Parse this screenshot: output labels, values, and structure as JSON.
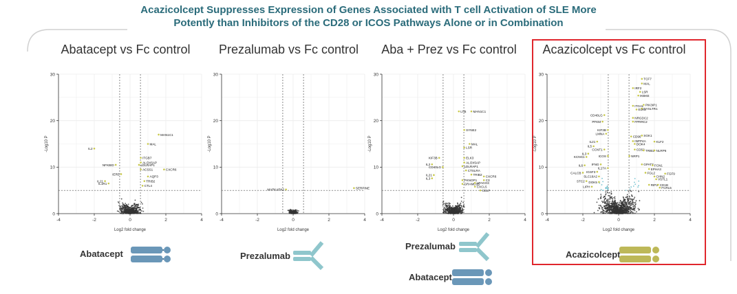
{
  "slide": {
    "title_line1": "Acazicolcept Suppresses Expression of Genes Associated with T cell Activation of SLE More",
    "title_line2": "Potently than Inhibitors of the CD28 or ICOS Pathways Alone or in Combination",
    "colors": {
      "title": "#2a6b7a",
      "highlight": "#e0262c",
      "sig_point": "#5bb7c8",
      "hl_point": "#c8c84a",
      "ns_point": "#333333",
      "abatacept_icon": "#6a97b8",
      "prezalumab_icon": "#8fc6cc",
      "acazicolcept_icon": "#bdb858"
    }
  },
  "drugs": {
    "abatacept": "Abatacept",
    "prezalumab": "Prezalumab",
    "acazicolcept": "Acazicolcept"
  },
  "chart_data": [
    {
      "type": "scatter",
      "title": "Abatacept vs Fc control",
      "xlabel": "Log2 fold change",
      "ylabel": "-Log10 P",
      "xlim": [
        -4,
        4
      ],
      "ylim": [
        0,
        30
      ],
      "xticks": [
        "-4",
        "-2",
        "0",
        "2",
        "4"
      ],
      "yticks": [
        "0",
        "10",
        "20",
        "30"
      ],
      "fc_threshold": [
        -0.58,
        0.58
      ],
      "p_threshold": 5,
      "points": [
        {
          "x": 1.6,
          "y": 17,
          "label": "MAN1C1"
        },
        {
          "x": 1.0,
          "y": 15,
          "label": "MAL"
        },
        {
          "x": -2.0,
          "y": 14,
          "label": "IL2"
        },
        {
          "x": 0.6,
          "y": 12,
          "label": "ITGB7"
        },
        {
          "x": 0.6,
          "y": 11,
          "label": "ALOX5AP"
        },
        {
          "x": -0.8,
          "y": 10.5,
          "label": "NFKBID"
        },
        {
          "x": 0.5,
          "y": 10.5,
          "label": "LDLRAP1"
        },
        {
          "x": 0.6,
          "y": 9.5,
          "label": "ACSS1"
        },
        {
          "x": 1.9,
          "y": 9.5,
          "label": "CXCR6"
        },
        {
          "x": -0.5,
          "y": 8.5,
          "label": "IER5"
        },
        {
          "x": 1.0,
          "y": 8,
          "label": "AQP3"
        },
        {
          "x": 0.8,
          "y": 7,
          "label": "TRIB2"
        },
        {
          "x": -1.4,
          "y": 7,
          "label": "IL21"
        },
        {
          "x": -1.2,
          "y": 6.5,
          "label": "IL1R1"
        },
        {
          "x": 0.7,
          "y": 6,
          "label": "CTL4"
        }
      ]
    },
    {
      "type": "scatter",
      "title": "Prezalumab vs Fc control",
      "xlabel": "Log2 fold change",
      "ylabel": "-Log10 P",
      "xlim": [
        -4,
        4
      ],
      "ylim": [
        0,
        30
      ],
      "xticks": [
        "-4",
        "-2",
        "0",
        "2",
        "4"
      ],
      "yticks": [
        "0",
        "10",
        "20",
        "30"
      ],
      "fc_threshold": [
        -0.58,
        0.58
      ],
      "p_threshold": 5,
      "points": [
        {
          "x": -0.4,
          "y": 5.2,
          "label": "MAPKAPK2"
        },
        {
          "x": 3.4,
          "y": 5.5,
          "label": "SERPINE"
        }
      ]
    },
    {
      "type": "scatter",
      "title": "Aba + Prez vs Fc control",
      "xlabel": "Log2 fold change",
      "ylabel": "-Log10 P",
      "xlim": [
        -4,
        4
      ],
      "ylim": [
        0,
        30
      ],
      "xticks": [
        "-4",
        "-2",
        "0",
        "2",
        "4"
      ],
      "yticks": [
        "0",
        "10",
        "20",
        "30"
      ],
      "fc_threshold": [
        -0.58,
        0.58
      ],
      "p_threshold": 5,
      "points": [
        {
          "x": 0.3,
          "y": 22,
          "label": "LTB"
        },
        {
          "x": 1.0,
          "y": 22,
          "label": "MAN1C1"
        },
        {
          "x": 0.6,
          "y": 18,
          "label": "SYNE2"
        },
        {
          "x": 0.9,
          "y": 15,
          "label": "MAL"
        },
        {
          "x": 0.6,
          "y": 14.2,
          "label": "LSR"
        },
        {
          "x": -0.8,
          "y": 12,
          "label": "KIF3B"
        },
        {
          "x": 0.6,
          "y": 12,
          "label": "ELK3"
        },
        {
          "x": 0.6,
          "y": 11,
          "label": "ALOX5AP"
        },
        {
          "x": -1.2,
          "y": 10.6,
          "label": "IL2"
        },
        {
          "x": -0.6,
          "y": 10,
          "label": "CD40LG"
        },
        {
          "x": 0.5,
          "y": 10.2,
          "label": "LDLRAP1"
        },
        {
          "x": 0.7,
          "y": 9.3,
          "label": "CTSLRA"
        },
        {
          "x": -1.1,
          "y": 8.3,
          "label": "IL21"
        },
        {
          "x": 1.0,
          "y": 8.4,
          "label": "TRIB2"
        },
        {
          "x": 1.7,
          "y": 8,
          "label": "CXCR6"
        },
        {
          "x": -1.2,
          "y": 7.6,
          "label": "IL3"
        },
        {
          "x": 0.5,
          "y": 7.2,
          "label": "PKNOP1"
        },
        {
          "x": 1.7,
          "y": 7.2,
          "label": "C3"
        },
        {
          "x": 0.5,
          "y": 6.4,
          "label": "GRAMD1B"
        },
        {
          "x": 1.2,
          "y": 6.6,
          "label": "LPAGO3"
        },
        {
          "x": 1.2,
          "y": 5.8,
          "label": "CXCL5"
        },
        {
          "x": 1.5,
          "y": 5,
          "label": "CELF"
        }
      ]
    },
    {
      "type": "scatter",
      "title": "Acazicolcept vs Fc control",
      "xlabel": "Log2 fold change",
      "ylabel": "-Log10 P",
      "xlim": [
        -4,
        4
      ],
      "ylim": [
        0,
        30
      ],
      "xticks": [
        "-4",
        "-2",
        "0",
        "2",
        "4"
      ],
      "yticks": [
        "0",
        "10",
        "20",
        "30"
      ],
      "fc_threshold": [
        -0.58,
        0.58
      ],
      "p_threshold": 5,
      "points": [
        {
          "x": 1.3,
          "y": 29,
          "label": "TCF7"
        },
        {
          "x": 1.3,
          "y": 28,
          "label": "MAL"
        },
        {
          "x": 0.8,
          "y": 27,
          "label": "IRF2"
        },
        {
          "x": 1.2,
          "y": 26.2,
          "label": "LSR"
        },
        {
          "x": 1.1,
          "y": 25.4,
          "label": "IKBKE"
        },
        {
          "x": 0.8,
          "y": 23.2,
          "label": "ITGAL"
        },
        {
          "x": 1.4,
          "y": 23.4,
          "label": "PIK3IP1"
        },
        {
          "x": 1.3,
          "y": 22.6,
          "label": "CYSLTR1"
        },
        {
          "x": 1.0,
          "y": 22.4,
          "label": "ELK3"
        },
        {
          "x": -0.8,
          "y": 21.2,
          "label": "CD40LG"
        },
        {
          "x": 0.8,
          "y": 20.6,
          "label": "NRGDC2"
        },
        {
          "x": -0.9,
          "y": 19.8,
          "label": "PFKM"
        },
        {
          "x": 0.8,
          "y": 19.8,
          "label": "FPRRC2"
        },
        {
          "x": -0.6,
          "y": 18,
          "label": "KIF3B"
        },
        {
          "x": -0.7,
          "y": 17.2,
          "label": "LMNA"
        },
        {
          "x": -1.2,
          "y": 15.5,
          "label": "IL21"
        },
        {
          "x": 0.7,
          "y": 16.6,
          "label": "CD96"
        },
        {
          "x": 1.3,
          "y": 16.8,
          "label": "SGK1"
        },
        {
          "x": 0.8,
          "y": 15.6,
          "label": "INPP4A"
        },
        {
          "x": 0.9,
          "y": 15.0,
          "label": "DOK4"
        },
        {
          "x": 2.0,
          "y": 15.5,
          "label": "KLF2"
        },
        {
          "x": -1.4,
          "y": 14.5,
          "label": "IL5"
        },
        {
          "x": -0.8,
          "y": 13.8,
          "label": "CCNT1"
        },
        {
          "x": 0.9,
          "y": 13.8,
          "label": "CD52"
        },
        {
          "x": 1.4,
          "y": 13.6,
          "label": "TRIB2"
        },
        {
          "x": 2.0,
          "y": 13.6,
          "label": "NLRP6"
        },
        {
          "x": -1.7,
          "y": 12.9,
          "label": "IL3"
        },
        {
          "x": -0.6,
          "y": 12.4,
          "label": "ICOS"
        },
        {
          "x": -1.8,
          "y": 12.2,
          "label": "KCNG1"
        },
        {
          "x": 0.6,
          "y": 12.4,
          "label": "NRP1"
        },
        {
          "x": -1.0,
          "y": 10.6,
          "label": "IFNG"
        },
        {
          "x": -1.9,
          "y": 10.4,
          "label": "IL6"
        },
        {
          "x": 1.3,
          "y": 10.6,
          "label": "GPAT3"
        },
        {
          "x": 1.9,
          "y": 10.4,
          "label": "FCN1"
        },
        {
          "x": -0.6,
          "y": 9.8,
          "label": "IL17A"
        },
        {
          "x": 1.7,
          "y": 9.6,
          "label": "EPHA3"
        },
        {
          "x": -1.2,
          "y": 9.0,
          "label": "IGSF3"
        },
        {
          "x": -2.0,
          "y": 8.8,
          "label": "CALCB"
        },
        {
          "x": 1.5,
          "y": 8.8,
          "label": "FGL2"
        },
        {
          "x": 2.6,
          "y": 8.6,
          "label": "FGF9"
        },
        {
          "x": -1.1,
          "y": 8.0,
          "label": "SLC16A2"
        },
        {
          "x": 2.0,
          "y": 8.0,
          "label": "CHN2"
        },
        {
          "x": 2.1,
          "y": 7.4,
          "label": "VSTL1"
        },
        {
          "x": -1.8,
          "y": 7.0,
          "label": "STC2"
        },
        {
          "x": -1.1,
          "y": 6.8,
          "label": "DOK5"
        },
        {
          "x": 1.7,
          "y": 6.2,
          "label": "RIP2"
        },
        {
          "x": 2.2,
          "y": 6.2,
          "label": "CD1B"
        },
        {
          "x": -1.5,
          "y": 5.8,
          "label": "LIPH"
        },
        {
          "x": 2.3,
          "y": 5.6,
          "label": "FCRL5"
        }
      ]
    }
  ]
}
